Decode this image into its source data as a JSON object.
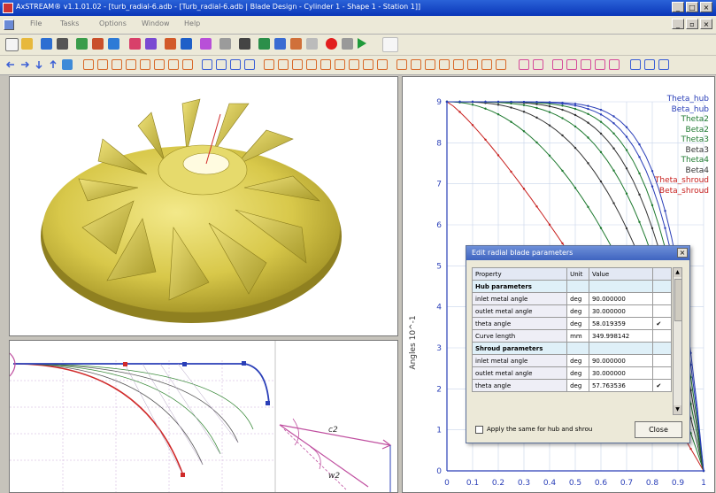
{
  "window": {
    "title": "AxSTREAM® v1.1.01.02 - [turb_radial-6.adb - [Turb_radial-6.adb | Blade Design - Cylinder 1 - Shape 1 - Station 1]]"
  },
  "menu": [
    "File",
    "Tasks",
    "Options",
    "Window",
    "Help"
  ],
  "chart": {
    "ylabel": "Angles 10^-1",
    "yticks": [
      "0",
      "1",
      "2",
      "3",
      "4",
      "5",
      "6",
      "7",
      "8",
      "9"
    ],
    "xticks": [
      "0",
      "0.1",
      "0.2",
      "0.3",
      "0.4",
      "0.5",
      "0.6",
      "0.7",
      "0.8",
      "0.9",
      "1"
    ],
    "legend": [
      {
        "label": "Theta_hub",
        "color": "#2a3fb8"
      },
      {
        "label": "Beta_hub",
        "color": "#2a3fb8"
      },
      {
        "label": "Theta2",
        "color": "#1f7a30"
      },
      {
        "label": "Beta2",
        "color": "#1f7a30"
      },
      {
        "label": "Theta3",
        "color": "#1f7a30"
      },
      {
        "label": "Beta3",
        "color": "#333333"
      },
      {
        "label": "Theta4",
        "color": "#1f7a30"
      },
      {
        "label": "Beta4",
        "color": "#333333"
      },
      {
        "label": "Theta_shroud",
        "color": "#c8201e"
      },
      {
        "label": "Beta_shroud",
        "color": "#c8201e"
      }
    ]
  },
  "dialog": {
    "title": "Edit radial blade parameters",
    "headers": [
      "Property",
      "Unit",
      "Value"
    ],
    "rows": [
      {
        "type": "section",
        "property": "Hub parameters"
      },
      {
        "property": "inlet metal angle",
        "unit": "deg",
        "value": "90.000000"
      },
      {
        "property": "outlet metal angle",
        "unit": "deg",
        "value": "30.000000"
      },
      {
        "property": "theta angle",
        "unit": "deg",
        "value": "58.019359",
        "check": true
      },
      {
        "property": "Curve length",
        "unit": "mm",
        "value": "349.998142"
      },
      {
        "type": "section",
        "property": "Shroud parameters"
      },
      {
        "property": "inlet metal angle",
        "unit": "deg",
        "value": "90.000000"
      },
      {
        "property": "outlet metal angle",
        "unit": "deg",
        "value": "30.000000"
      },
      {
        "property": "theta angle",
        "unit": "deg",
        "value": "57.763536",
        "check": true
      }
    ],
    "apply_label": "Apply the same for hub and shrou",
    "close_label": "Close"
  },
  "curve_labels": {
    "c2": "c2",
    "w2": "w2"
  }
}
